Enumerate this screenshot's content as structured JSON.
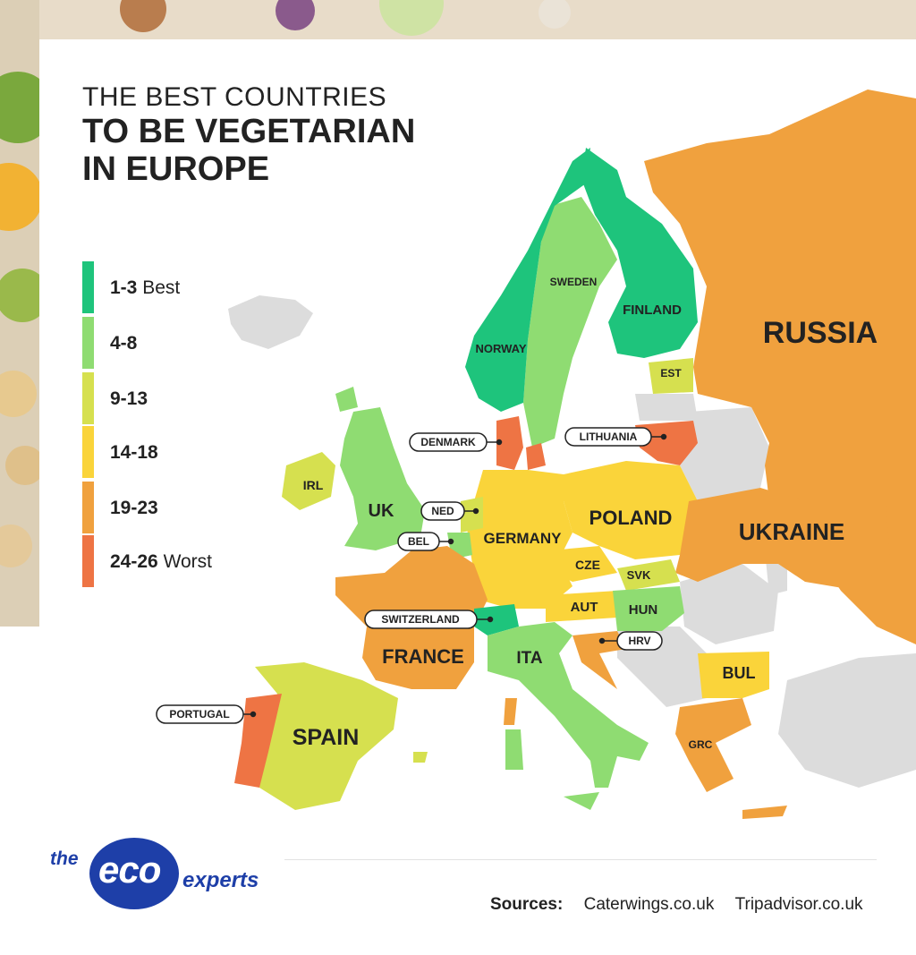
{
  "title": {
    "line1": "THE BEST COUNTRIES",
    "line2": "TO BE VEGETARIAN",
    "line3": "IN EUROPE"
  },
  "legend": [
    {
      "range": "1-3",
      "label": "Best",
      "color": "#1ec47c"
    },
    {
      "range": "4-8",
      "label": "",
      "color": "#8fdc72"
    },
    {
      "range": "9-13",
      "label": "",
      "color": "#d6e04f"
    },
    {
      "range": "14-18",
      "label": "",
      "color": "#fad43a"
    },
    {
      "range": "19-23",
      "label": "",
      "color": "#f0a13e"
    },
    {
      "range": "24-26",
      "label": "Worst",
      "color": "#ee7444"
    }
  ],
  "colors": {
    "unranked": "#dcdcdc",
    "sea": "#ffffff",
    "text": "#222222"
  },
  "countries": {
    "russia": "RUSSIA",
    "ukraine": "UKRAINE",
    "finland": "FINLAND",
    "sweden": "SWEDEN",
    "norway": "NORWAY",
    "est": "EST",
    "lithuania": "LITHUANIA",
    "denmark": "DENMARK",
    "poland": "POLAND",
    "germany": "GERMANY",
    "ned": "NED",
    "bel": "BEL",
    "uk": "UK",
    "irl": "IRL",
    "france": "FRANCE",
    "switzerland": "SWITZERLAND",
    "ita": "ITA",
    "aut": "AUT",
    "cze": "CZE",
    "svk": "SVK",
    "hun": "HUN",
    "hrv": "HRV",
    "bul": "BUL",
    "grc": "GRC",
    "spain": "SPAIN",
    "portugal": "PORTUGAL"
  },
  "sources": {
    "label": "Sources:",
    "items": [
      "Caterwings.co.uk",
      "Tripadvisor.co.uk"
    ]
  },
  "logo": {
    "the": "the",
    "eco": "eco",
    "experts": "experts"
  }
}
